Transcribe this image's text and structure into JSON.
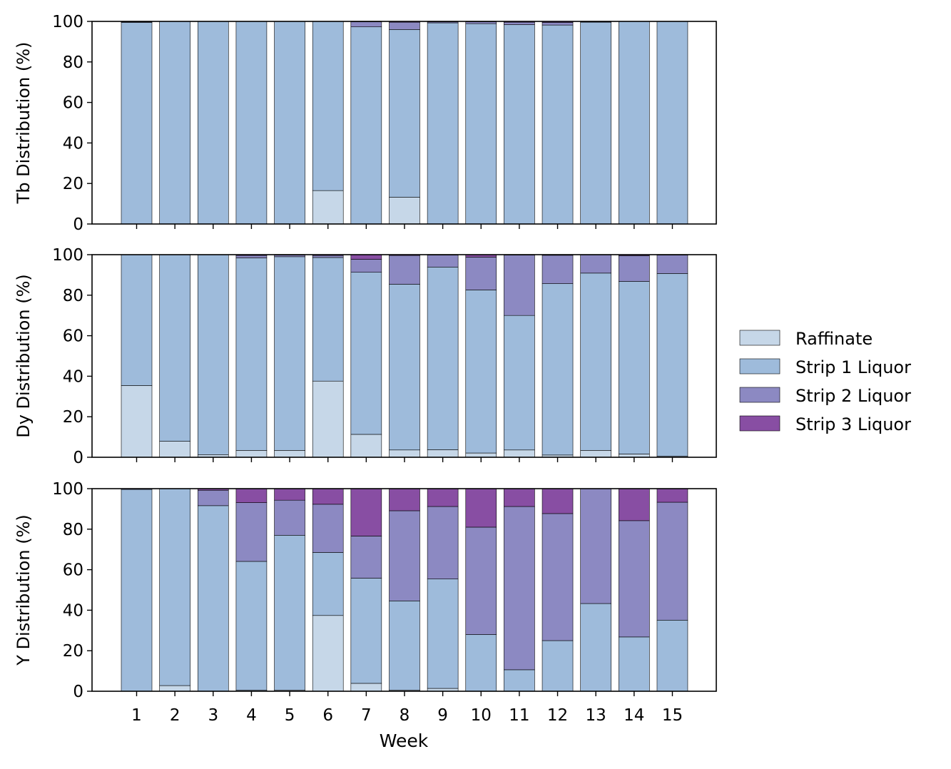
{
  "chart_data": {
    "type": "bar",
    "stacked": true,
    "xlabel": "Week",
    "categories": [
      "1",
      "2",
      "3",
      "4",
      "5",
      "6",
      "7",
      "8",
      "9",
      "10",
      "11",
      "12",
      "13",
      "14",
      "15"
    ],
    "legend_position": "center-right",
    "series_colors": {
      "Raffinate": "#c6d7e8",
      "Strip 1 Liquor": "#9ebbdb",
      "Strip 2 Liquor": "#8c89c2",
      "Strip 3 Liquor": "#884ea3"
    },
    "legend": [
      "Raffinate",
      "Strip 1 Liquor",
      "Strip 2 Liquor",
      "Strip 3 Liquor"
    ],
    "panels": [
      {
        "ylabel": "Tb Distribution (%)",
        "ylim": [
          0,
          100
        ],
        "yticks": [
          0,
          20,
          40,
          60,
          80,
          100
        ],
        "series": [
          {
            "name": "Raffinate",
            "values": [
              0,
              0,
              0,
              0,
              0,
              16.5,
              0,
              13.2,
              0,
              0,
              0,
              0,
              0,
              0,
              0
            ]
          },
          {
            "name": "Strip 1 Liquor",
            "values": [
              99.5,
              100,
              100,
              100,
              100,
              83.5,
              97.3,
              82.8,
              99.3,
              98.9,
              98.4,
              98.2,
              99.6,
              100,
              100
            ]
          },
          {
            "name": "Strip 2 Liquor",
            "values": [
              0.3,
              0,
              0,
              0,
              0,
              0,
              2.5,
              3.6,
              0.5,
              0.9,
              1.2,
              1.3,
              0.2,
              0,
              0
            ]
          },
          {
            "name": "Strip 3 Liquor",
            "values": [
              0.2,
              0,
              0,
              0,
              0,
              0,
              0.2,
              0.4,
              0.2,
              0.2,
              0.4,
              0.5,
              0.2,
              0,
              0
            ]
          }
        ]
      },
      {
        "ylabel": "Dy Distribution (%)",
        "ylim": [
          0,
          100
        ],
        "yticks": [
          0,
          20,
          40,
          60,
          80,
          100
        ],
        "series": [
          {
            "name": "Raffinate",
            "values": [
              35.4,
              7.9,
              1.3,
              3.4,
              3.4,
              37.6,
              11.3,
              3.6,
              3.7,
              2.1,
              3.6,
              1.1,
              3.4,
              1.6,
              0.5
            ]
          },
          {
            "name": "Strip 1 Liquor",
            "values": [
              64.6,
              92.1,
              98.7,
              95.0,
              95.6,
              61.0,
              80.0,
              81.8,
              90.2,
              80.5,
              66.4,
              84.6,
              87.5,
              85.2,
              90.2
            ]
          },
          {
            "name": "Strip 2 Liquor",
            "values": [
              0,
              0,
              0,
              1.2,
              0.8,
              1.0,
              6.4,
              14.2,
              5.9,
              16.2,
              29.8,
              14.0,
              9.0,
              12.7,
              9.1
            ]
          },
          {
            "name": "Strip 3 Liquor",
            "values": [
              0,
              0,
              0,
              0.4,
              0.2,
              0.4,
              2.3,
              0.4,
              0.2,
              1.2,
              0.2,
              0.3,
              0.1,
              0.5,
              0.2
            ]
          }
        ]
      },
      {
        "ylabel": "Y Distribution (%)",
        "ylim": [
          0,
          100
        ],
        "yticks": [
          0,
          20,
          40,
          60,
          80,
          100
        ],
        "series": [
          {
            "name": "Raffinate",
            "values": [
              0,
              2.8,
              0,
              0.5,
              0.6,
              37.4,
              3.9,
              0.6,
              1.4,
              0,
              0,
              0,
              0,
              0,
              0
            ]
          },
          {
            "name": "Strip 1 Liquor",
            "values": [
              99.6,
              97.2,
              91.6,
              63.6,
              76.4,
              31.1,
              51.9,
              44.0,
              54.0,
              28.0,
              10.6,
              25.0,
              43.3,
              26.8,
              35.1
            ]
          },
          {
            "name": "Strip 2 Liquor",
            "values": [
              0.4,
              0,
              7.6,
              29.0,
              17.3,
              23.8,
              20.8,
              44.5,
              35.8,
              53.0,
              80.6,
              62.7,
              56.7,
              57.4,
              58.2
            ]
          },
          {
            "name": "Strip 3 Liquor",
            "values": [
              0,
              0,
              0.8,
              6.9,
              5.7,
              7.7,
              23.4,
              10.9,
              8.8,
              19.0,
              8.8,
              12.3,
              0,
              15.8,
              6.7
            ]
          }
        ]
      }
    ]
  }
}
